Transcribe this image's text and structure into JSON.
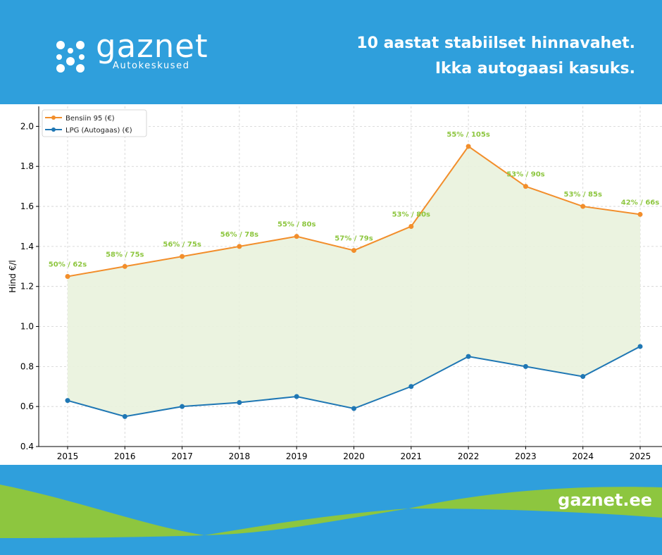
{
  "brand": {
    "name": "gaznet",
    "subtitle": "Autokeskused",
    "website": "gaznet.ee",
    "colors": {
      "blue": "#2f9fdc",
      "green": "#8dc63f"
    }
  },
  "headline": {
    "line1": "10 aastat stabiilset hinnavahet.",
    "line2": "Ikka autogaasi kasuks."
  },
  "chart_data": {
    "type": "line",
    "ylabel": "Hind €/l",
    "xlabel": "",
    "ylim": [
      0.4,
      2.1
    ],
    "yticks": [
      0.4,
      0.6,
      0.8,
      1.0,
      1.2,
      1.4,
      1.6,
      1.8,
      2.0
    ],
    "grid": true,
    "legend": "top-left",
    "categories": [
      "2015",
      "2016",
      "2017",
      "2018",
      "2019",
      "2020",
      "2021",
      "2022",
      "2023",
      "2024",
      "2025"
    ],
    "series": [
      {
        "name": "Bensiin 95 (€)",
        "color": "#f28e2b",
        "values": [
          1.25,
          1.3,
          1.35,
          1.4,
          1.45,
          1.38,
          1.5,
          1.9,
          1.7,
          1.6,
          1.56
        ]
      },
      {
        "name": "LPG (Autogaas) (€)",
        "color": "#1f77b4",
        "values": [
          0.63,
          0.55,
          0.6,
          0.62,
          0.65,
          0.59,
          0.7,
          0.85,
          0.8,
          0.75,
          0.9
        ]
      }
    ],
    "annotations": [
      "50% / 62s",
      "58% / 75s",
      "56% / 75s",
      "56% / 78s",
      "55% / 80s",
      "57% / 79s",
      "53% / 80s",
      "55% / 105s",
      "53% / 90s",
      "53% / 85s",
      "42% / 66s"
    ],
    "annotation_color": "#8dc63f",
    "fill_between_color": "#e9f2dd"
  }
}
